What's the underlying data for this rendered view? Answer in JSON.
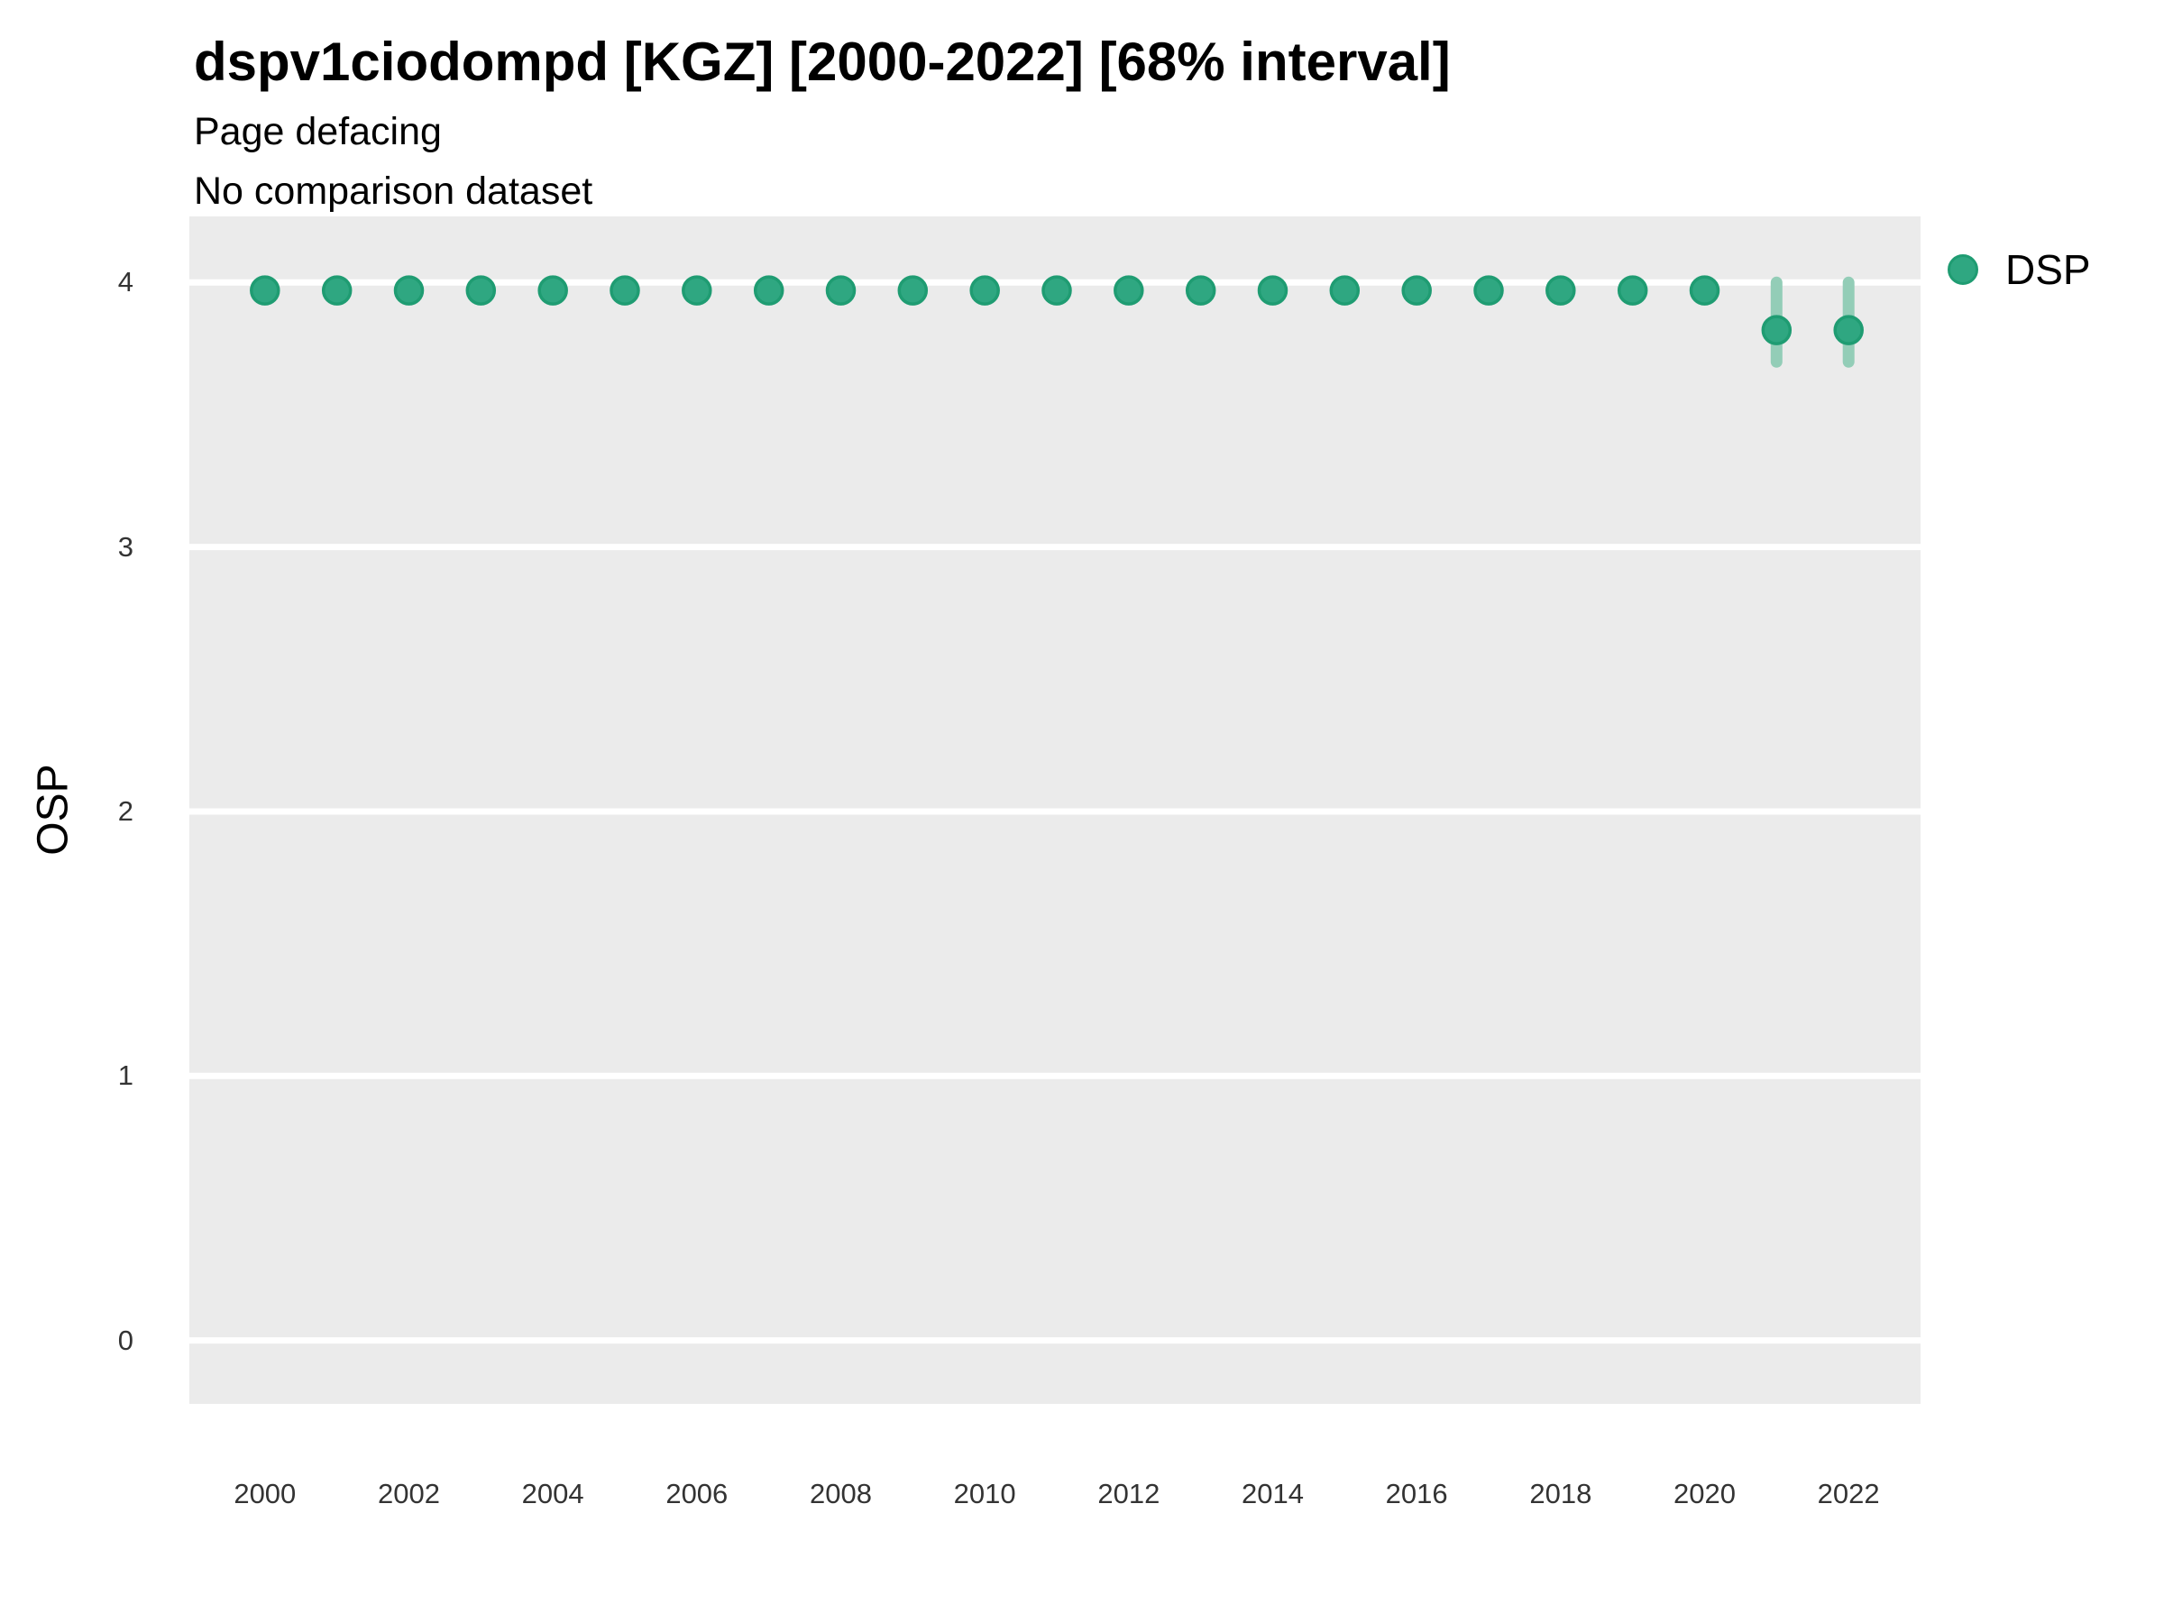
{
  "header": {
    "title": "dspv1ciodompd [KGZ] [2000-2022] [68% interval]",
    "subtitle_line1": "Page defacing",
    "subtitle_line2": "No comparison dataset"
  },
  "legend": {
    "position": "right-top",
    "items": [
      {
        "label": "DSP",
        "marker": "circle-icon",
        "color": "#2FA781"
      }
    ]
  },
  "axes": {
    "y_title": "OSP",
    "y_ticks": [
      0,
      1,
      2,
      3,
      4
    ],
    "x_ticks": [
      2000,
      2002,
      2004,
      2006,
      2008,
      2010,
      2012,
      2014,
      2016,
      2018,
      2020,
      2022
    ]
  },
  "colors": {
    "background": "#FFFFFF",
    "panel": "#EBEBEB",
    "gridline": "#FFFFFF",
    "point_fill": "#2FA781",
    "point_stroke": "#1F9C72",
    "interval_line": "#93CDB7",
    "title_text": "#000000",
    "tick_text": "#333333"
  },
  "chart_data": {
    "type": "scatter",
    "title": "dspv1ciodompd [KGZ] [2000-2022] [68% interval]",
    "subtitle": "Page defacing / No comparison dataset",
    "xlabel": "",
    "ylabel": "OSP",
    "xlim": [
      1998.95,
      2023.0
    ],
    "ylim": [
      -0.24,
      4.25
    ],
    "grid": "major-horizontal-only",
    "legend_position": "right-top",
    "interval": "68%",
    "series": [
      {
        "name": "DSP",
        "points": [
          {
            "x": 2000,
            "y": 3.97,
            "lo": 3.97,
            "hi": 3.97
          },
          {
            "x": 2001,
            "y": 3.97,
            "lo": 3.97,
            "hi": 3.97
          },
          {
            "x": 2002,
            "y": 3.97,
            "lo": 3.97,
            "hi": 3.97
          },
          {
            "x": 2003,
            "y": 3.97,
            "lo": 3.97,
            "hi": 3.97
          },
          {
            "x": 2004,
            "y": 3.97,
            "lo": 3.97,
            "hi": 3.97
          },
          {
            "x": 2005,
            "y": 3.97,
            "lo": 3.97,
            "hi": 3.97
          },
          {
            "x": 2006,
            "y": 3.97,
            "lo": 3.97,
            "hi": 3.97
          },
          {
            "x": 2007,
            "y": 3.97,
            "lo": 3.97,
            "hi": 3.97
          },
          {
            "x": 2008,
            "y": 3.97,
            "lo": 3.97,
            "hi": 3.97
          },
          {
            "x": 2009,
            "y": 3.97,
            "lo": 3.97,
            "hi": 3.97
          },
          {
            "x": 2010,
            "y": 3.97,
            "lo": 3.97,
            "hi": 3.97
          },
          {
            "x": 2011,
            "y": 3.97,
            "lo": 3.97,
            "hi": 3.97
          },
          {
            "x": 2012,
            "y": 3.97,
            "lo": 3.97,
            "hi": 3.97
          },
          {
            "x": 2013,
            "y": 3.97,
            "lo": 3.97,
            "hi": 3.97
          },
          {
            "x": 2014,
            "y": 3.97,
            "lo": 3.97,
            "hi": 3.97
          },
          {
            "x": 2015,
            "y": 3.97,
            "lo": 3.97,
            "hi": 3.97
          },
          {
            "x": 2016,
            "y": 3.97,
            "lo": 3.97,
            "hi": 3.97
          },
          {
            "x": 2017,
            "y": 3.97,
            "lo": 3.97,
            "hi": 3.97
          },
          {
            "x": 2018,
            "y": 3.97,
            "lo": 3.97,
            "hi": 3.97
          },
          {
            "x": 2019,
            "y": 3.97,
            "lo": 3.97,
            "hi": 3.97
          },
          {
            "x": 2020,
            "y": 3.97,
            "lo": 3.97,
            "hi": 3.97
          },
          {
            "x": 2021,
            "y": 3.82,
            "lo": 3.7,
            "hi": 4.0
          },
          {
            "x": 2022,
            "y": 3.82,
            "lo": 3.7,
            "hi": 4.0
          }
        ]
      }
    ]
  }
}
